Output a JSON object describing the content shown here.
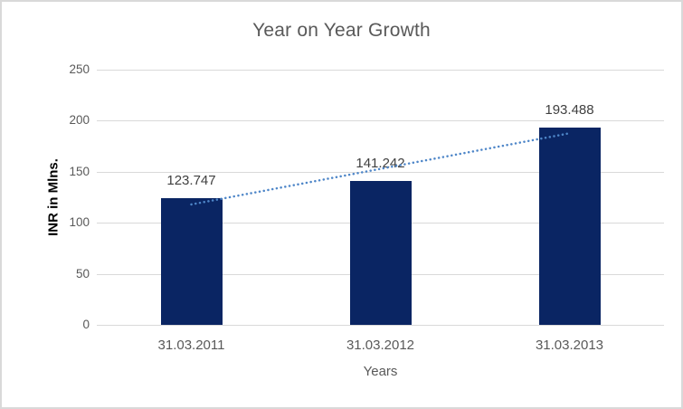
{
  "chart_data": {
    "type": "bar",
    "title": "Year on Year Growth",
    "xlabel": "Years",
    "ylabel": "INR in Mlns.",
    "categories": [
      "31.03.2011",
      "31.03.2012",
      "31.03.2013"
    ],
    "values": [
      123.747,
      141.242,
      193.488
    ],
    "data_labels": [
      "123.747",
      "141.242",
      "193.488"
    ],
    "ytick_labels": [
      "0",
      "50",
      "100",
      "150",
      "200",
      "250"
    ],
    "yticks": [
      0,
      50,
      100,
      150,
      200,
      250
    ],
    "ylim": [
      0,
      250
    ],
    "grid": true,
    "legend": false,
    "trendline": {
      "type": "linear",
      "style": "dotted"
    },
    "colors": {
      "bar": "#0A2563",
      "trendline": "#4E86C8",
      "gridline": "#D9D9D9",
      "title_text": "#595959",
      "tick_text": "#595959",
      "data_label_text": "#404040",
      "axis_title_text": "#000000",
      "border": "#D9D9D9",
      "background": "#FFFFFF"
    }
  }
}
